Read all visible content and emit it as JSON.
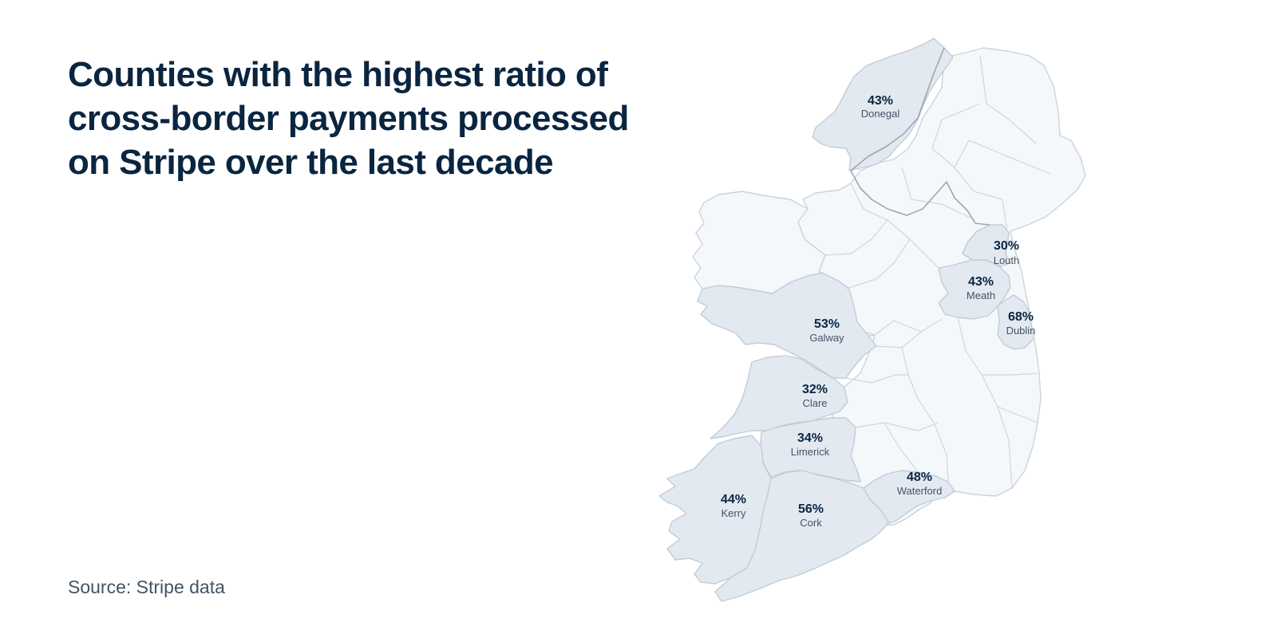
{
  "title_lines": [
    "Counties with the highest ratio of",
    "cross-border payments processed",
    "on Stripe over the last decade"
  ],
  "source": "Source: Stripe data",
  "colors": {
    "highlighted_fill": "#e3e9f0",
    "other_fill": "#f5f8fb",
    "title": "#0a2540",
    "label_secondary": "#425466"
  },
  "counties": [
    {
      "name": "Donegal",
      "value": "43%"
    },
    {
      "name": "Louth",
      "value": "30%"
    },
    {
      "name": "Meath",
      "value": "43%"
    },
    {
      "name": "Dublin",
      "value": "68%"
    },
    {
      "name": "Galway",
      "value": "53%"
    },
    {
      "name": "Clare",
      "value": "32%"
    },
    {
      "name": "Limerick",
      "value": "34%"
    },
    {
      "name": "Waterford",
      "value": "48%"
    },
    {
      "name": "Kerry",
      "value": "44%"
    },
    {
      "name": "Cork",
      "value": "56%"
    }
  ]
}
